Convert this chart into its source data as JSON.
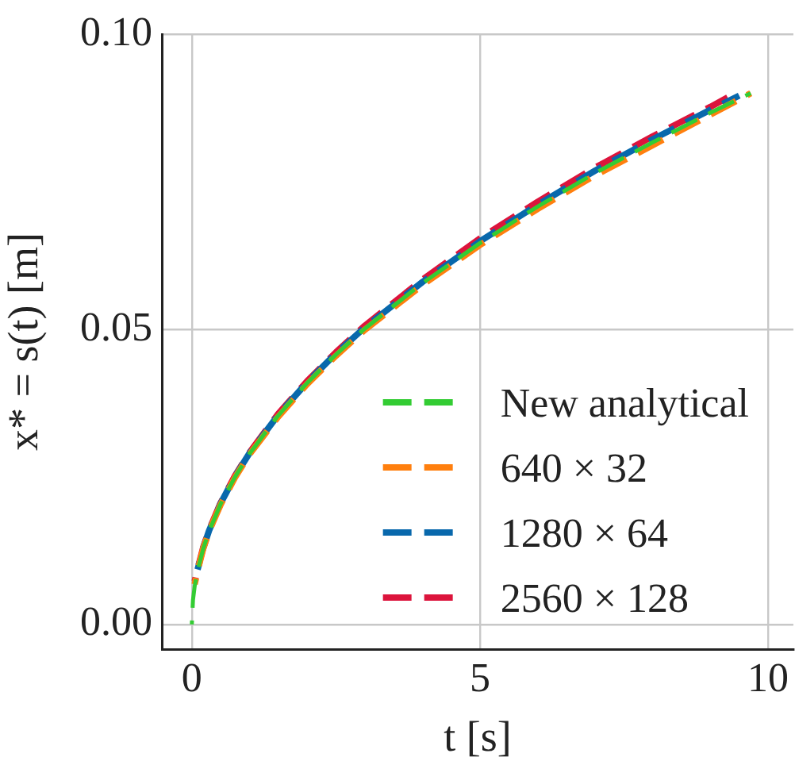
{
  "chart_data": {
    "type": "line",
    "xlabel": "t [s]",
    "ylabel": "x* = s(t) [m]",
    "xlim": [
      -0.52,
      10.44
    ],
    "ylim": [
      -0.0042,
      0.1
    ],
    "xticks": [
      0,
      5,
      10
    ],
    "yticks": [
      {
        "value": 0,
        "label": "0.00"
      },
      {
        "value": 0.05,
        "label": "0.05"
      },
      {
        "value": 0.1,
        "label": "0.10"
      }
    ],
    "grid": true,
    "legend": "bottom right",
    "line_style": "dashed",
    "marker": "none",
    "series": [
      {
        "name": "New analytical",
        "color": "#33cc33",
        "x": [
          0,
          0.02,
          0.05,
          0.1,
          0.2,
          0.3,
          0.5,
          0.75,
          1,
          1.5,
          2,
          2.5,
          3,
          4,
          5,
          6,
          7,
          8,
          9,
          9.7
        ],
        "values": [
          0,
          0.0041,
          0.0065,
          0.0091,
          0.0129,
          0.0158,
          0.0204,
          0.025,
          0.0289,
          0.0354,
          0.0409,
          0.0457,
          0.0501,
          0.0578,
          0.0646,
          0.0708,
          0.0765,
          0.0817,
          0.0867,
          0.09
        ]
      },
      {
        "name": "640 × 32",
        "color": "#ff7f0e",
        "x": [
          0.05,
          0.1,
          0.2,
          0.3,
          0.5,
          0.75,
          1,
          1.5,
          2,
          2.5,
          3,
          4,
          5,
          6,
          7,
          8,
          9,
          9.7
        ],
        "values": [
          0.0068,
          0.0091,
          0.0129,
          0.0158,
          0.0203,
          0.0249,
          0.0288,
          0.0352,
          0.0407,
          0.0455,
          0.0499,
          0.0575,
          0.0643,
          0.0704,
          0.0761,
          0.0812,
          0.0864,
          0.09
        ]
      },
      {
        "name": "1280 × 64",
        "color": "#0868ac",
        "x": [
          0.1,
          0.2,
          0.3,
          0.5,
          0.75,
          1,
          1.5,
          2,
          2.5,
          3,
          4,
          5,
          6,
          7,
          8,
          9,
          9.5
        ],
        "values": [
          0.0093,
          0.013,
          0.0159,
          0.0205,
          0.0251,
          0.029,
          0.0355,
          0.041,
          0.0459,
          0.0503,
          0.058,
          0.0649,
          0.0711,
          0.0769,
          0.0822,
          0.0872,
          0.0896
        ]
      },
      {
        "name": "2560 × 128",
        "color": "#dc143c",
        "x": [
          0.05,
          0.1,
          0.2,
          0.3,
          0.5,
          0.75,
          1,
          1.5,
          2,
          2.5,
          3,
          4,
          5,
          6,
          7,
          8,
          9,
          9.3
        ],
        "values": [
          0.0073,
          0.0094,
          0.0131,
          0.016,
          0.0206,
          0.0252,
          0.0291,
          0.0357,
          0.0412,
          0.0461,
          0.0506,
          0.0584,
          0.0654,
          0.0716,
          0.0774,
          0.0827,
          0.0877,
          0.0893
        ]
      }
    ]
  }
}
